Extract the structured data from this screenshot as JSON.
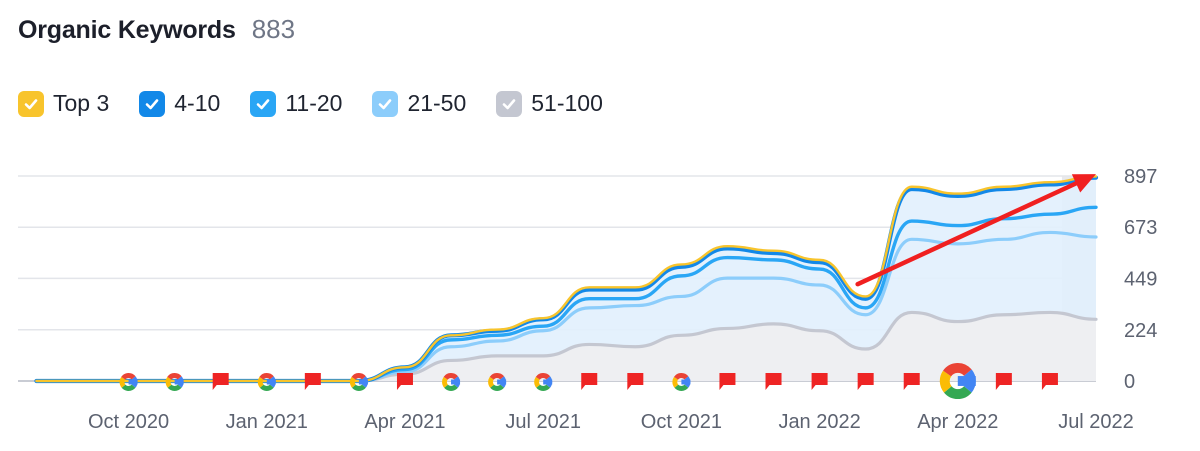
{
  "header": {
    "title": "Organic Keywords",
    "count": "883"
  },
  "legend": [
    {
      "label": "Top 3",
      "color": "#f8c42c"
    },
    {
      "label": "4-10",
      "color": "#1288e8"
    },
    {
      "label": "11-20",
      "color": "#2aa6f5"
    },
    {
      "label": "21-50",
      "color": "#8ccdfb"
    },
    {
      "label": "51-100",
      "color": "#c4c7d1"
    }
  ],
  "icons": {
    "checkbox": "check-icon",
    "google_update": "google-icon",
    "note_marker": "flag-icon"
  },
  "chart_data": {
    "type": "area",
    "x": [
      "2020-08",
      "2020-09",
      "2020-10",
      "2020-11",
      "2020-12",
      "2021-01",
      "2021-02",
      "2021-03",
      "2021-04",
      "2021-05",
      "2021-06",
      "2021-07",
      "2021-08",
      "2021-09",
      "2021-10",
      "2021-11",
      "2021-12",
      "2022-01",
      "2022-02",
      "2022-03",
      "2022-04",
      "2022-05",
      "2022-06",
      "2022-07"
    ],
    "x_ticks": [
      "Oct 2020",
      "Jan 2021",
      "Apr 2021",
      "Jul 2021",
      "Oct 2021",
      "Jan 2022",
      "Apr 2022",
      "Jul 2022"
    ],
    "y_ticks": [
      "897",
      "673",
      "449",
      "224",
      "0"
    ],
    "ylim": [
      0,
      897
    ],
    "grid": true,
    "stacking": "cumulative",
    "series": [
      {
        "name": "51-100",
        "color": "#c4c7d1",
        "values": [
          0,
          0,
          0,
          0,
          0,
          0,
          0,
          0,
          30,
          90,
          110,
          110,
          160,
          150,
          200,
          230,
          250,
          220,
          140,
          300,
          260,
          290,
          300,
          270
        ]
      },
      {
        "name": "21-50",
        "color": "#8ccdfb",
        "values": [
          0,
          0,
          0,
          0,
          0,
          0,
          0,
          0,
          40,
          150,
          175,
          220,
          320,
          330,
          370,
          450,
          450,
          420,
          290,
          620,
          600,
          620,
          650,
          630
        ]
      },
      {
        "name": "11-20",
        "color": "#2aa6f5",
        "values": [
          0,
          0,
          0,
          0,
          0,
          0,
          0,
          0,
          50,
          180,
          200,
          240,
          360,
          360,
          460,
          540,
          530,
          490,
          320,
          700,
          680,
          710,
          730,
          760
        ]
      },
      {
        "name": "4-10",
        "color": "#1288e8",
        "values": [
          0,
          0,
          0,
          0,
          0,
          0,
          0,
          0,
          60,
          200,
          220,
          270,
          400,
          400,
          500,
          580,
          560,
          520,
          360,
          840,
          810,
          840,
          860,
          890
        ]
      },
      {
        "name": "Top 3",
        "color": "#f8c42c",
        "values": [
          0,
          0,
          0,
          0,
          0,
          0,
          0,
          0,
          60,
          200,
          225,
          275,
          410,
          410,
          510,
          590,
          570,
          530,
          370,
          850,
          820,
          850,
          870,
          895
        ]
      }
    ],
    "annotations": [
      {
        "type": "google-update",
        "date": "2020-10"
      },
      {
        "type": "google-update",
        "date": "2020-11"
      },
      {
        "type": "note",
        "date": "2020-12"
      },
      {
        "type": "google-update",
        "date": "2021-01"
      },
      {
        "type": "note",
        "date": "2021-02"
      },
      {
        "type": "google-update",
        "date": "2021-03"
      },
      {
        "type": "note",
        "date": "2021-04"
      },
      {
        "type": "google-update",
        "date": "2021-05"
      },
      {
        "type": "google-update",
        "date": "2021-06"
      },
      {
        "type": "google-update",
        "date": "2021-07"
      },
      {
        "type": "note",
        "date": "2021-08"
      },
      {
        "type": "note",
        "date": "2021-09"
      },
      {
        "type": "google-update",
        "date": "2021-10"
      },
      {
        "type": "note",
        "date": "2021-11"
      },
      {
        "type": "note",
        "date": "2021-12"
      },
      {
        "type": "note",
        "date": "2022-01"
      },
      {
        "type": "note",
        "date": "2022-02"
      },
      {
        "type": "note",
        "date": "2022-03"
      },
      {
        "type": "google-update",
        "date": "2022-04",
        "size": "large"
      },
      {
        "type": "note",
        "date": "2022-05"
      },
      {
        "type": "note",
        "date": "2022-06"
      }
    ],
    "trend_arrow": {
      "from": {
        "date": "2022-02",
        "value": 380
      },
      "to": {
        "date": "2022-07",
        "value": 905
      },
      "color": "#f02020"
    }
  }
}
